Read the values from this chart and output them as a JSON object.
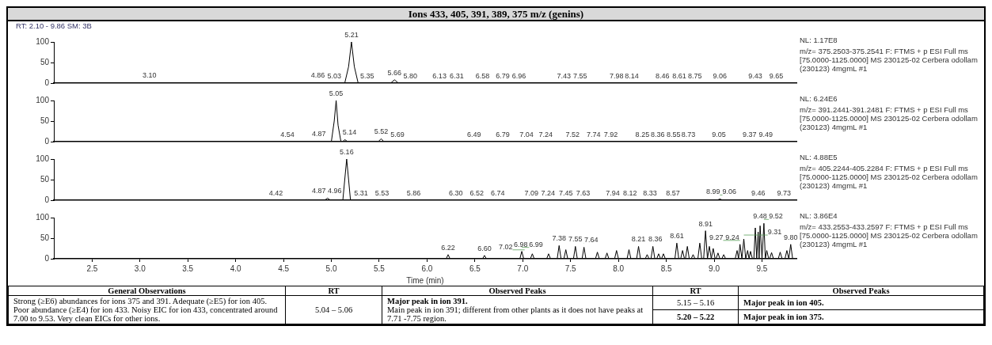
{
  "chart_data": [
    {
      "type": "line",
      "title": "Ions 433, 405, 391, 389, 375 m/z (genins)",
      "subtitle": "RT: 2.10 - 9.86   SM: 3B",
      "color": "#000000",
      "x": [
        2.1,
        3.08,
        3.1,
        3.12,
        4.84,
        4.86,
        4.88,
        5.14,
        5.18,
        5.21,
        5.24,
        5.28,
        5.62,
        5.66,
        5.7,
        9.86
      ],
      "values": [
        0,
        0,
        1,
        0,
        0,
        1,
        0,
        0,
        40,
        100,
        40,
        0,
        0,
        8,
        0,
        0
      ],
      "xlim": [
        2.1,
        9.86
      ],
      "xticks": [
        2.5,
        3.0,
        3.5,
        4.0,
        4.5,
        5.0,
        5.5,
        6.0,
        6.5,
        7.0,
        7.5,
        8.0,
        8.5,
        9.0,
        9.5
      ],
      "ylim": [
        0,
        100
      ],
      "yticks": [
        0,
        50,
        100
      ],
      "tick_labels": "y",
      "annotations": [
        "NL: 1.17E8",
        "m/z= 375.2503-375.2541 F: FTMS + p ESI Full ms [75.0000-1125.0000]  MS 230125-02 Cerbera odollam (230123) 4mgmL #1",
        {
          "text": "3.10",
          "x": 3.1,
          "y": 1
        },
        {
          "text": "4.86",
          "x": 4.86,
          "y": 1
        },
        {
          "text": "5.03",
          "x": 5.03,
          "y": 0
        },
        {
          "text": "5.21",
          "x": 5.21,
          "y": 100
        },
        {
          "text": "5.35",
          "x": 5.35,
          "y": 0
        },
        {
          "text": "5.66",
          "x": 5.66,
          "y": 8
        },
        {
          "text": "5.80",
          "x": 5.8,
          "y": 0
        },
        {
          "text": "6.13",
          "x": 6.13,
          "y": 0
        },
        {
          "text": "6.31",
          "x": 6.31,
          "y": 0
        },
        {
          "text": "6.58",
          "x": 6.58,
          "y": 0
        },
        {
          "text": "6.79",
          "x": 6.79,
          "y": 0
        },
        {
          "text": "6.96",
          "x": 6.96,
          "y": 0
        },
        {
          "text": "7.43",
          "x": 7.43,
          "y": 0
        },
        {
          "text": "7.55",
          "x": 7.55,
          "y": 0
        },
        {
          "text": "7.98",
          "x": 7.98,
          "y": 0
        },
        {
          "text": "8.14",
          "x": 8.14,
          "y": 0
        },
        {
          "text": "8.46",
          "x": 8.46,
          "y": 0
        },
        {
          "text": "8.61",
          "x": 8.61,
          "y": 0
        },
        {
          "text": "8.75",
          "x": 8.75,
          "y": 0
        },
        {
          "text": "9.06",
          "x": 9.06,
          "y": 0
        },
        {
          "text": "9.43",
          "x": 9.43,
          "y": 0
        },
        {
          "text": "9.65",
          "x": 9.65,
          "y": 0
        }
      ]
    },
    {
      "type": "line",
      "color": "#000000",
      "x": [
        2.1,
        4.85,
        4.87,
        4.89,
        5.0,
        5.03,
        5.05,
        5.07,
        5.1,
        5.12,
        5.14,
        5.17,
        5.49,
        5.52,
        5.55,
        9.86
      ],
      "values": [
        0,
        0,
        1,
        0,
        0,
        50,
        100,
        40,
        0,
        0,
        5,
        0,
        0,
        7,
        0,
        0
      ],
      "xlim": [
        2.1,
        9.86
      ],
      "xticks": [
        2.5,
        3.0,
        3.5,
        4.0,
        4.5,
        5.0,
        5.5,
        6.0,
        6.5,
        7.0,
        7.5,
        8.0,
        8.5,
        9.0,
        9.5
      ],
      "ylim": [
        0,
        100
      ],
      "yticks": [
        0,
        50,
        100
      ],
      "tick_labels": "y",
      "annotations": [
        "NL: 6.24E6",
        "m/z= 391.2441-391.2481 F: FTMS + p ESI Full ms [75.0000-1125.0000]  MS 230125-02 Cerbera odollam (230123) 4mgmL #1",
        {
          "text": "4.54",
          "x": 4.54,
          "y": 0
        },
        {
          "text": "4.87",
          "x": 4.87,
          "y": 1
        },
        {
          "text": "5.05",
          "x": 5.05,
          "y": 100
        },
        {
          "text": "5.14",
          "x": 5.14,
          "y": 5
        },
        {
          "text": "5.52",
          "x": 5.52,
          "y": 7
        },
        {
          "text": "5.69",
          "x": 5.69,
          "y": 0
        },
        {
          "text": "6.49",
          "x": 6.49,
          "y": 0
        },
        {
          "text": "6.79",
          "x": 6.79,
          "y": 0
        },
        {
          "text": "7.04",
          "x": 7.04,
          "y": 0
        },
        {
          "text": "7.24",
          "x": 7.24,
          "y": 0
        },
        {
          "text": "7.52",
          "x": 7.52,
          "y": 0
        },
        {
          "text": "7.74",
          "x": 7.74,
          "y": 0
        },
        {
          "text": "7.92",
          "x": 7.92,
          "y": 0
        },
        {
          "text": "8.25",
          "x": 8.25,
          "y": 0
        },
        {
          "text": "8.36",
          "x": 8.36,
          "y": 0
        },
        {
          "text": "8.55",
          "x": 8.55,
          "y": 0
        },
        {
          "text": "8.73",
          "x": 8.73,
          "y": 0
        },
        {
          "text": "9.05",
          "x": 9.05,
          "y": 0
        },
        {
          "text": "9.37",
          "x": 9.37,
          "y": 0
        },
        {
          "text": "9.49",
          "x": 9.49,
          "y": 0
        }
      ]
    },
    {
      "type": "line",
      "color": "#000000",
      "x": [
        2.1,
        4.93,
        4.96,
        4.99,
        5.12,
        5.14,
        5.16,
        5.18,
        5.2,
        9.03,
        9.06,
        9.09,
        9.86
      ],
      "values": [
        0,
        0,
        5,
        0,
        0,
        50,
        100,
        50,
        0,
        0,
        3,
        0,
        0
      ],
      "xlim": [
        2.1,
        9.86
      ],
      "xticks": [
        2.5,
        3.0,
        3.5,
        4.0,
        4.5,
        5.0,
        5.5,
        6.0,
        6.5,
        7.0,
        7.5,
        8.0,
        8.5,
        9.0,
        9.5
      ],
      "ylim": [
        0,
        100
      ],
      "yticks": [
        0,
        50,
        100
      ],
      "tick_labels": "y",
      "annotations": [
        "NL: 4.88E5",
        "m/z= 405.2244-405.2284 F: FTMS + p ESI Full ms [75.0000-1125.0000]  MS 230125-02 Cerbera odollam (230123) 4mgmL #1",
        {
          "text": "4.42",
          "x": 4.42,
          "y": 0
        },
        {
          "text": "4.87",
          "x": 4.87,
          "y": 0
        },
        {
          "text": "4.96",
          "x": 4.96,
          "y": 5
        },
        {
          "text": "5.16",
          "x": 5.16,
          "y": 100
        },
        {
          "text": "5.31",
          "x": 5.31,
          "y": 0
        },
        {
          "text": "5.53",
          "x": 5.53,
          "y": 0
        },
        {
          "text": "5.86",
          "x": 5.86,
          "y": 0
        },
        {
          "text": "6.30",
          "x": 6.3,
          "y": 0
        },
        {
          "text": "6.52",
          "x": 6.52,
          "y": 0
        },
        {
          "text": "6.74",
          "x": 6.74,
          "y": 0
        },
        {
          "text": "7.09",
          "x": 7.09,
          "y": 0
        },
        {
          "text": "7.24",
          "x": 7.24,
          "y": 0
        },
        {
          "text": "7.45",
          "x": 7.45,
          "y": 0
        },
        {
          "text": "7.63",
          "x": 7.63,
          "y": 0
        },
        {
          "text": "7.94",
          "x": 7.94,
          "y": 0
        },
        {
          "text": "8.12",
          "x": 8.12,
          "y": 0
        },
        {
          "text": "8.33",
          "x": 8.33,
          "y": 0
        },
        {
          "text": "8.57",
          "x": 8.57,
          "y": 0
        },
        {
          "text": "8.99",
          "x": 8.99,
          "y": 0
        },
        {
          "text": "9.06",
          "x": 9.06,
          "y": 3
        },
        {
          "text": "9.46",
          "x": 9.46,
          "y": 0
        },
        {
          "text": "9.73",
          "x": 9.73,
          "y": 0
        }
      ]
    },
    {
      "type": "line",
      "color": "#000000",
      "xlabel": "Time (min)",
      "x": [
        2.1,
        6.2,
        6.22,
        6.24,
        6.58,
        6.6,
        6.62,
        6.97,
        6.99,
        7.01,
        7.08,
        7.1,
        7.12,
        7.25,
        7.27,
        7.29,
        7.36,
        7.38,
        7.4,
        7.43,
        7.45,
        7.47,
        7.53,
        7.55,
        7.57,
        7.62,
        7.64,
        7.66,
        7.76,
        7.78,
        7.8,
        7.86,
        7.88,
        7.9,
        7.96,
        7.98,
        8.0,
        8.09,
        8.11,
        8.13,
        8.19,
        8.21,
        8.23,
        8.28,
        8.3,
        8.32,
        8.34,
        8.36,
        8.38,
        8.4,
        8.42,
        8.44,
        8.45,
        8.47,
        8.49,
        8.59,
        8.61,
        8.63,
        8.65,
        8.67,
        8.69,
        8.7,
        8.72,
        8.74,
        8.76,
        8.78,
        8.8,
        8.83,
        8.85,
        8.87,
        8.89,
        8.91,
        8.93,
        8.95,
        8.97,
        8.99,
        9.01,
        9.02,
        9.04,
        9.06,
        9.08,
        9.1,
        9.12,
        9.22,
        9.24,
        9.255,
        9.27,
        9.29,
        9.31,
        9.33,
        9.35,
        9.365,
        9.38,
        9.4,
        9.415,
        9.43,
        9.445,
        9.46,
        9.47,
        9.48,
        9.5,
        9.52,
        9.535,
        9.55,
        9.57,
        9.58,
        9.6,
        9.62,
        9.67,
        9.69,
        9.71,
        9.74,
        9.76,
        9.78,
        9.8,
        9.82,
        9.86
      ],
      "values": [
        0,
        0,
        10,
        0,
        0,
        8,
        0,
        0,
        18,
        0,
        0,
        12,
        0,
        0,
        12,
        0,
        0,
        32,
        0,
        0,
        22,
        0,
        0,
        30,
        0,
        0,
        28,
        0,
        0,
        16,
        0,
        0,
        14,
        0,
        0,
        20,
        0,
        0,
        22,
        0,
        0,
        30,
        0,
        0,
        10,
        0,
        0,
        30,
        0,
        0,
        12,
        0,
        0,
        12,
        0,
        0,
        38,
        0,
        0,
        20,
        0,
        0,
        30,
        0,
        0,
        10,
        0,
        0,
        38,
        0,
        0,
        68,
        0,
        30,
        0,
        25,
        0,
        0,
        14,
        0,
        0,
        10,
        0,
        0,
        20,
        0,
        35,
        0,
        48,
        0,
        20,
        0,
        18,
        0,
        0,
        75,
        0,
        65,
        0,
        80,
        0,
        86,
        0,
        20,
        0,
        0,
        15,
        0,
        0,
        16,
        0,
        0,
        20,
        0,
        35,
        0,
        0
      ],
      "xlim": [
        2.1,
        9.86
      ],
      "xticks": [
        2.5,
        {
          "value": 3,
          "label": "3.0"
        },
        3.5,
        {
          "value": 4,
          "label": "4.0"
        },
        4.5,
        {
          "value": 5,
          "label": "5.0"
        },
        5.5,
        {
          "value": 6,
          "label": "6.0"
        },
        6.5,
        {
          "value": 7,
          "label": "7.0"
        },
        7.5,
        {
          "value": 8,
          "label": "8.0"
        },
        8.5,
        {
          "value": 9,
          "label": "9.0"
        },
        9.5
      ],
      "ylim": [
        0,
        100
      ],
      "yticks": [
        0,
        50,
        100
      ],
      "annotations": [
        "NL: 3.86E4",
        "m/z= 433.2553-433.2597 F: FTMS + p ESI Full ms [75.0000-1125.0000]  MS 230125-02 Cerbera odollam (230123) 4mgmL #1",
        {
          "text": "6.22",
          "x": 6.22,
          "y": 10
        },
        {
          "text": "6.60",
          "x": 6.6,
          "y": 8
        },
        {
          "text": "6.98",
          "x": 6.98,
          "y": 4
        },
        {
          "text": "6.99",
          "x": 6.99,
          "y": 18
        },
        {
          "text": "7.02",
          "x": 7.02,
          "y": 12
        },
        {
          "text": "7.38",
          "x": 7.38,
          "y": 32
        },
        {
          "text": "7.55",
          "x": 7.55,
          "y": 30
        },
        {
          "text": "7.64",
          "x": 7.64,
          "y": 28
        },
        {
          "text": "8.21",
          "x": 8.21,
          "y": 30
        },
        {
          "text": "8.36",
          "x": 8.36,
          "y": 30
        },
        {
          "text": "8.61",
          "x": 8.61,
          "y": 38
        },
        {
          "text": "8.91",
          "x": 8.91,
          "y": 68
        },
        {
          "text": "9.24",
          "x": 9.24,
          "y": 20
        },
        {
          "text": "9.27",
          "x": 9.27,
          "y": 35
        },
        {
          "text": "9.31",
          "x": 9.31,
          "y": 48
        },
        {
          "text": "9.48",
          "x": 9.48,
          "y": 80
        },
        {
          "text": "9.52",
          "x": 9.52,
          "y": 86
        },
        {
          "text": "9.80",
          "x": 9.8,
          "y": 35
        }
      ]
    },
    {
      "type": "other",
      "annotations": [
        "General Observations",
        "RT",
        "Observed Peaks",
        "RT",
        "Observed Peaks",
        "Strong (≥E6) abundances for ions 375 and 391. Adequate (≥E5) for ion 405. Poor abundance (≥E4) for ion 433. Noisy EIC for ion 433, concentrated around 7.00 to 9.53. Very clean EICs for other ions.",
        "5.04 – 5.06",
        "Major peak in ion 391.",
        "Main peak in ion 391; different from other plants as it does not have peaks at 7.71 -7.75 region.",
        "5.15 – 5.16",
        "Major peak in ion 405.",
        "5.20 – 5.22",
        "Major peak in ion 375."
      ]
    }
  ]
}
